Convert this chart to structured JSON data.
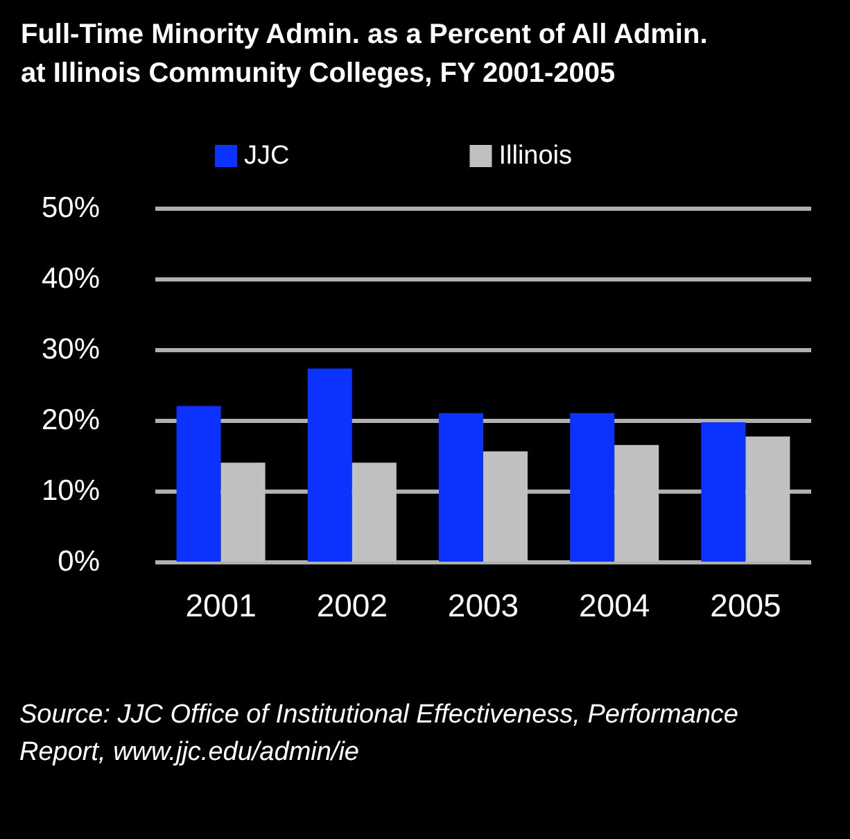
{
  "chart_data": {
    "type": "bar",
    "title": "Full-Time Minority Admin. as a Percent of All Admin.\nat Illinois Community Colleges, FY 2001-2005",
    "categories": [
      "2001",
      "2002",
      "2003",
      "2004",
      "2005"
    ],
    "series": [
      {
        "name": "JJC",
        "color": "#0b32ff",
        "values": [
          22,
          27.3,
          21,
          21,
          19.7
        ]
      },
      {
        "name": "Illinois",
        "color": "#c0c0c0",
        "values": [
          14,
          14,
          15.6,
          16.5,
          17.7
        ]
      }
    ],
    "ylim": [
      0,
      50
    ],
    "yticks": [
      {
        "value": 0,
        "label": "0%"
      },
      {
        "value": 10,
        "label": "10%"
      },
      {
        "value": 20,
        "label": "20%"
      },
      {
        "value": 30,
        "label": "30%"
      },
      {
        "value": 40,
        "label": "40%"
      },
      {
        "value": 50,
        "label": "50%"
      }
    ],
    "grid": "y",
    "legend": "top",
    "annotations": [
      "Source: JJC Office of Institutional Effectiveness, Performance\nReport, www.jjc.edu/admin/ie"
    ]
  }
}
